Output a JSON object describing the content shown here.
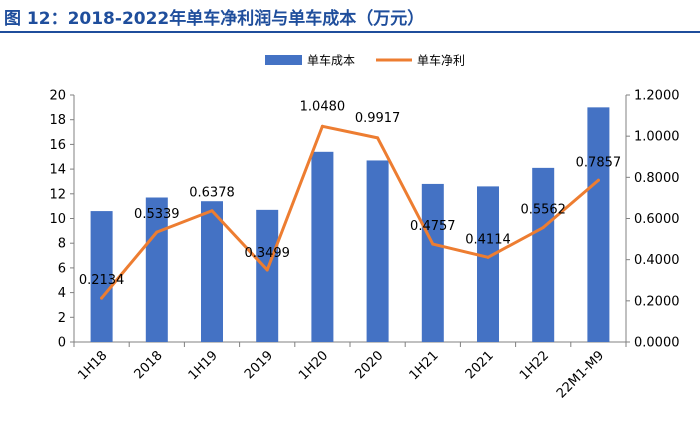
{
  "figure": {
    "title": "图 12：2018-2022年单车净利润与单车成本（万元）"
  },
  "chart_data": {
    "type": "bar+line",
    "categories": [
      "1H18",
      "2018",
      "1H19",
      "2019",
      "1H20",
      "2020",
      "1H21",
      "2021",
      "1H22",
      "22M1-M9"
    ],
    "series": [
      {
        "name": "单车成本",
        "type": "bar",
        "axis": "left",
        "color": "#4472c4",
        "values": [
          10.6,
          11.7,
          11.4,
          10.7,
          15.4,
          14.7,
          12.8,
          12.6,
          14.1,
          19.0
        ]
      },
      {
        "name": "单车净利",
        "type": "line",
        "axis": "right",
        "color": "#ed7d31",
        "values": [
          0.2134,
          0.5339,
          0.6378,
          0.3499,
          1.048,
          0.9917,
          0.4757,
          0.4114,
          0.5562,
          0.7857
        ],
        "labels": [
          "0.2134",
          "0.5339",
          "0.6378",
          "0.3499",
          "1.0480",
          "0.9917",
          "0.4757",
          "0.4114",
          "0.5562",
          "0.7857"
        ]
      }
    ],
    "y_left": {
      "ylim": [
        0,
        20
      ],
      "ticks": [
        "0",
        "2",
        "4",
        "6",
        "8",
        "10",
        "12",
        "14",
        "16",
        "18",
        "20"
      ]
    },
    "y_right": {
      "ylim": [
        0,
        1.2
      ],
      "ticks": [
        "0.0000",
        "0.2000",
        "0.4000",
        "0.6000",
        "0.8000",
        "1.0000",
        "1.2000"
      ]
    },
    "grid": false,
    "legend_position": "top-center"
  }
}
